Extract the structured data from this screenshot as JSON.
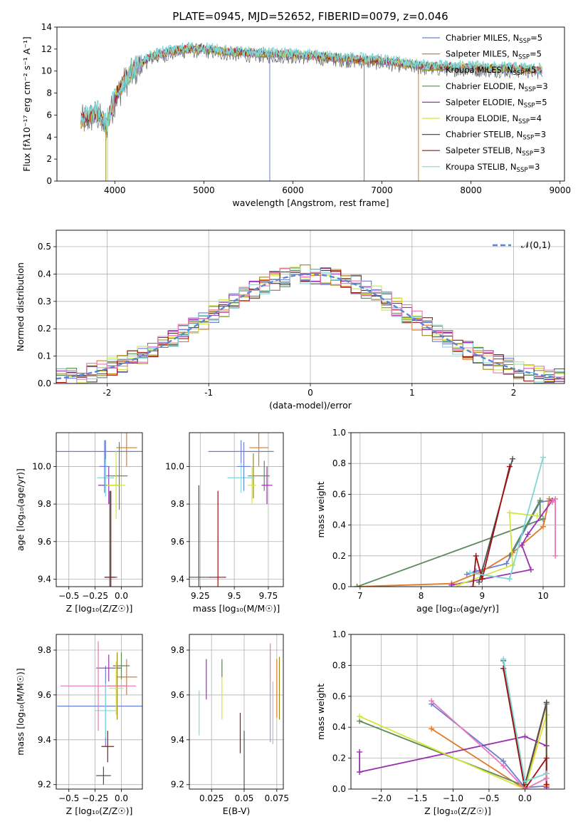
{
  "title": "PLATE=0945, MJD=52652, FIBERID=0079, z=0.046",
  "legend_entries": [
    {
      "name": "Chabrier MILES",
      "nssp": "5",
      "color": "#6b7fd7"
    },
    {
      "name": "Salpeter MILES",
      "nssp": "5",
      "color": "#e07a2a"
    },
    {
      "name": "Kroupa MILES",
      "nssp": "5",
      "color": "#9a8a10"
    },
    {
      "name": "Chabrier ELODIE",
      "nssp": "3",
      "color": "#5a8a5a"
    },
    {
      "name": "Salpeter ELODIE",
      "nssp": "5",
      "color": "#9b30b0"
    },
    {
      "name": "Kroupa ELODIE",
      "nssp": "4",
      "color": "#d4e63a"
    },
    {
      "name": "Chabrier STELIB",
      "nssp": "3",
      "color": "#505050"
    },
    {
      "name": "Salpeter STELIB",
      "nssp": "3",
      "color": "#a01010"
    },
    {
      "name": "Kroupa STELIB",
      "nssp": "3",
      "color": "#80d8d8"
    }
  ],
  "chart_data": [
    {
      "id": "spectrum",
      "type": "line",
      "xlabel": "wavelength [Angstrom, rest frame]",
      "ylabel": "Flux [fλ10⁻¹⁷ erg cm⁻² s⁻¹ A⁻¹]",
      "xlim": [
        3350,
        9050
      ],
      "ylim": [
        0,
        14
      ],
      "xticks": [
        4000,
        5000,
        6000,
        7000,
        8000,
        9000
      ],
      "yticks": [
        0,
        2,
        4,
        6,
        8,
        10,
        12,
        14
      ],
      "continuum_x": [
        3600,
        3700,
        3800,
        3900,
        4000,
        4100,
        4200,
        4400,
        4600,
        4800,
        5000,
        5200,
        5500,
        6000,
        6500,
        7000,
        7500,
        8000,
        8500,
        8800
      ],
      "continuum_y": [
        5.5,
        5.8,
        6.2,
        5.0,
        7.5,
        9.0,
        10.0,
        11.3,
        11.7,
        12.0,
        12.0,
        11.8,
        11.6,
        11.5,
        11.2,
        10.9,
        10.4,
        10.3,
        10.2,
        10.1
      ],
      "grid": false
    },
    {
      "id": "residual_hist",
      "type": "line",
      "xlabel": "(data-model)/error",
      "ylabel": "Normed distribution",
      "xlim": [
        -2.5,
        2.5
      ],
      "ylim": [
        0,
        0.56
      ],
      "xticks": [
        -2,
        -1,
        0,
        1,
        2
      ],
      "yticks": [
        0.0,
        0.1,
        0.2,
        0.3,
        0.4,
        0.5
      ],
      "reference_label": "𝒩(0,1)",
      "grid": true,
      "legend": "top-right"
    },
    {
      "id": "age_vs_Z",
      "type": "scatter",
      "xlabel": "Z [log₁₀(Z/Z☉)]",
      "ylabel": "age  [log₁₀(age/yr)]",
      "xlim": [
        -0.62,
        0.2
      ],
      "ylim": [
        9.36,
        10.18
      ],
      "xticks": [
        -0.5,
        -0.25,
        0.0
      ],
      "xticklabels": [
        "−0.5",
        "−0.25",
        "0.0"
      ],
      "yticks": [
        9.4,
        9.6,
        9.8,
        10.0
      ],
      "points": [
        {
          "x": -0.15,
          "y": 10.08,
          "ex": 0.47,
          "ey": 0.06,
          "c": 0
        },
        {
          "x": 0.05,
          "y": 10.1,
          "ex": 0.1,
          "ey": 0.1,
          "c": 1
        },
        {
          "x": -0.05,
          "y": 9.95,
          "ex": 0.1,
          "ey": 0.05,
          "c": 2
        },
        {
          "x": -0.02,
          "y": 9.95,
          "ex": 0.08,
          "ey": 0.18,
          "c": 3
        },
        {
          "x": -0.12,
          "y": 9.9,
          "ex": 0.1,
          "ey": 0.1,
          "c": 4
        },
        {
          "x": -0.05,
          "y": 9.9,
          "ex": 0.09,
          "ey": 0.18,
          "c": 5
        },
        {
          "x": -0.11,
          "y": 9.41,
          "ex": 0.05,
          "ey": 0.46,
          "c": 6
        },
        {
          "x": -0.1,
          "y": 9.41,
          "ex": 0.06,
          "ey": 0.46,
          "c": 7
        },
        {
          "x": -0.15,
          "y": 9.94,
          "ex": 0.08,
          "ey": 0.1,
          "c": 8
        },
        {
          "x": -0.16,
          "y": 10.0,
          "ex": 0.05,
          "ey": 0.14,
          "c": 0
        }
      ]
    },
    {
      "id": "age_vs_mass",
      "type": "scatter",
      "xlabel": "mass [log₁₀(M/M☉)]",
      "ylabel": "",
      "xlim": [
        9.17,
        9.86
      ],
      "ylim": [
        9.36,
        10.18
      ],
      "xticks": [
        9.25,
        9.5,
        9.75
      ],
      "yticks": [
        9.4,
        9.6,
        9.8,
        10.0
      ],
      "points": [
        {
          "x": 9.55,
          "y": 10.08,
          "ex": 0.24,
          "ey": 0.06,
          "c": 0
        },
        {
          "x": 9.68,
          "y": 10.1,
          "ex": 0.07,
          "ey": 0.1,
          "c": 1
        },
        {
          "x": 9.64,
          "y": 9.95,
          "ex": 0.04,
          "ey": 0.12,
          "c": 2
        },
        {
          "x": 9.72,
          "y": 9.95,
          "ex": 0.04,
          "ey": 0.08,
          "c": 3
        },
        {
          "x": 9.74,
          "y": 9.9,
          "ex": 0.04,
          "ey": 0.1,
          "c": 4
        },
        {
          "x": 9.63,
          "y": 9.9,
          "ex": 0.03,
          "ey": 0.1,
          "c": 5
        },
        {
          "x": 9.24,
          "y": 9.41,
          "ex": 0.09,
          "ey": 0.49,
          "c": 6
        },
        {
          "x": 9.38,
          "y": 9.41,
          "ex": 0.06,
          "ey": 0.46,
          "c": 7
        },
        {
          "x": 9.55,
          "y": 9.94,
          "ex": 0.1,
          "ey": 0.08,
          "c": 8
        },
        {
          "x": 9.57,
          "y": 10.0,
          "ex": 0.05,
          "ey": 0.13,
          "c": 0
        }
      ]
    },
    {
      "id": "mass_weight_vs_age",
      "type": "line",
      "xlabel": "age  [log₁₀(age/yr)]",
      "ylabel": "mass weight",
      "xlim": [
        6.85,
        10.35
      ],
      "ylim": [
        0,
        1
      ],
      "xticks": [
        7,
        8,
        9,
        10
      ],
      "yticks": [
        0.0,
        0.2,
        0.4,
        0.6,
        0.8,
        1.0
      ],
      "grid": true,
      "series": [
        {
          "c": 0,
          "x": [
            8.75,
            8.9,
            9.4,
            9.95,
            10.15
          ],
          "y": [
            0.08,
            0.1,
            0.15,
            0.55,
            0.56
          ]
        },
        {
          "c": 1,
          "x": [
            6.95,
            8.5,
            9.0,
            9.5,
            10.0,
            10.1,
            10.15
          ],
          "y": [
            0.0,
            0.02,
            0.1,
            0.22,
            0.39,
            0.57,
            0.55
          ]
        },
        {
          "c": 3,
          "x": [
            6.95,
            10.0
          ],
          "y": [
            0.0,
            0.44
          ]
        },
        {
          "c": 3,
          "x": [
            9.45,
            9.95,
            9.95
          ],
          "y": [
            0.2,
            0.56,
            0.46
          ]
        },
        {
          "c": 4,
          "x": [
            8.5,
            9.8,
            9.65,
            9.75,
            10.15
          ],
          "y": [
            0.01,
            0.11,
            0.27,
            0.34,
            0.56
          ]
        },
        {
          "c": 5,
          "x": [
            8.6,
            9.5,
            9.45,
            9.9
          ],
          "y": [
            0.01,
            0.14,
            0.48,
            0.46
          ]
        },
        {
          "c": 6,
          "x": [
            8.95,
            9.5
          ],
          "y": [
            0.03,
            0.83
          ]
        },
        {
          "c": 7,
          "x": [
            8.85,
            8.9,
            9.0,
            9.45
          ],
          "y": [
            0.0,
            0.2,
            0.05,
            0.78
          ]
        },
        {
          "c": 8,
          "x": [
            8.8,
            9.45,
            10.0
          ],
          "y": [
            0.09,
            0.05,
            0.84
          ]
        },
        {
          "c": 1,
          "x": [
            10.2,
            10.2,
            10.15
          ],
          "y": [
            0.2,
            0.57,
            0.55
          ],
          "pink": true
        }
      ]
    },
    {
      "id": "mass_vs_Z",
      "type": "scatter",
      "xlabel": "Z [log₁₀(Z/Z☉)]",
      "ylabel": "mass [log₁₀(M/M☉)]",
      "xlim": [
        -0.62,
        0.2
      ],
      "ylim": [
        9.18,
        9.87
      ],
      "xticks": [
        -0.5,
        -0.25,
        0.0
      ],
      "xticklabels": [
        "−0.5",
        "−0.25",
        "0.0"
      ],
      "yticks": [
        9.2,
        9.4,
        9.6,
        9.8
      ],
      "points": [
        {
          "x": -0.15,
          "y": 9.55,
          "ex": 0.46,
          "ey": 0.18,
          "c": 0
        },
        {
          "x": 0.05,
          "y": 9.68,
          "ex": 0.1,
          "ey": 0.08,
          "c": 1
        },
        {
          "x": -0.04,
          "y": 9.64,
          "ex": 0.09,
          "ey": 0.15,
          "c": 2
        },
        {
          "x": 0.0,
          "y": 9.73,
          "ex": 0.08,
          "ey": 0.06,
          "c": 3
        },
        {
          "x": -0.12,
          "y": 9.72,
          "ex": 0.12,
          "ey": 0.06,
          "c": 4
        },
        {
          "x": -0.05,
          "y": 9.63,
          "ex": 0.07,
          "ey": 0.12,
          "c": 5
        },
        {
          "x": -0.17,
          "y": 9.24,
          "ex": 0.07,
          "ey": 0.04,
          "c": 6
        },
        {
          "x": -0.13,
          "y": 9.37,
          "ex": 0.06,
          "ey": 0.07,
          "c": 7
        },
        {
          "x": -0.15,
          "y": 9.53,
          "ex": 0.1,
          "ey": 0.12,
          "c": 8
        },
        {
          "x": -0.22,
          "y": 9.64,
          "ex": 0.36,
          "ey": 0.2,
          "c": 0,
          "pink": true
        }
      ]
    },
    {
      "id": "mass_vs_ebv",
      "type": "scatter",
      "xlabel": "E(B-V)",
      "ylabel": "",
      "xlim": [
        0.008,
        0.08
      ],
      "ylim": [
        9.18,
        9.87
      ],
      "xticks": [
        0.025,
        0.05,
        0.075
      ],
      "yticks": [
        9.2,
        9.4,
        9.6,
        9.8
      ],
      "points": [
        {
          "x": 0.0155,
          "y": 9.52,
          "ey": 0.1,
          "c": 8
        },
        {
          "x": 0.021,
          "y": 9.67,
          "ey": 0.09,
          "c": 4
        },
        {
          "x": 0.033,
          "y": 9.62,
          "ey": 0.13,
          "c": 5
        },
        {
          "x": 0.033,
          "y": 9.72,
          "ey": 0.04,
          "c": 3
        },
        {
          "x": 0.047,
          "y": 9.43,
          "ey": 0.09,
          "c": 7
        },
        {
          "x": 0.05,
          "y": 9.27,
          "ey": 0.17,
          "c": 6
        },
        {
          "x": 0.07,
          "y": 9.61,
          "ey": 0.22,
          "c": 0,
          "pink": true
        },
        {
          "x": 0.072,
          "y": 9.52,
          "ey": 0.14,
          "c": 8
        },
        {
          "x": 0.075,
          "y": 9.63,
          "ey": 0.13,
          "c": 1
        },
        {
          "x": 0.077,
          "y": 9.63,
          "ey": 0.14,
          "c": 2
        }
      ]
    },
    {
      "id": "mass_weight_vs_Z",
      "type": "line",
      "xlabel": "Z [log₁₀(Z/Z☉)]",
      "ylabel": "mass weight",
      "xlim": [
        -2.42,
        0.55
      ],
      "ylim": [
        0,
        1
      ],
      "xticks": [
        -2.0,
        -1.5,
        -1.0,
        -0.5,
        0.0
      ],
      "xticklabels": [
        "−2.0",
        "−1.5",
        "−1.0",
        "−0.5",
        "0.0"
      ],
      "yticks": [
        0.0,
        0.2,
        0.4,
        0.6,
        0.8,
        1.0
      ],
      "grid": true,
      "series": [
        {
          "c": 0,
          "x": [
            -1.3,
            -0.3,
            0.0,
            0.3
          ],
          "y": [
            0.55,
            0.18,
            0.01,
            0.02
          ]
        },
        {
          "c": 1,
          "x": [
            -1.3,
            0.0,
            0.3,
            0.3
          ],
          "y": [
            0.39,
            0.0,
            0.55,
            0.02
          ]
        },
        {
          "c": 3,
          "x": [
            -2.3,
            0.0,
            0.3,
            0.3
          ],
          "y": [
            0.44,
            0.02,
            0.56,
            0.1
          ]
        },
        {
          "c": 4,
          "x": [
            -2.3,
            -2.3,
            0.0,
            0.3,
            0.3
          ],
          "y": [
            0.24,
            0.11,
            0.34,
            0.28,
            0.01
          ]
        },
        {
          "c": 5,
          "x": [
            -2.3,
            0.0,
            0.3,
            0.3
          ],
          "y": [
            0.47,
            0.0,
            0.48,
            0.1
          ]
        },
        {
          "c": 6,
          "x": [
            -0.3,
            0.0,
            0.3,
            0.3
          ],
          "y": [
            0.83,
            0.03,
            0.56,
            0.1
          ]
        },
        {
          "c": 7,
          "x": [
            -0.3,
            0.0,
            0.3,
            0.3
          ],
          "y": [
            0.78,
            0.0,
            0.2,
            0.03
          ]
        },
        {
          "c": 8,
          "x": [
            -0.3,
            0.0,
            0.3
          ],
          "y": [
            0.84,
            0.05,
            0.1
          ]
        },
        {
          "c": 0,
          "x": [
            -1.3,
            -0.3,
            0.0,
            0.3
          ],
          "y": [
            0.57,
            0.15,
            0.0,
            0.07
          ],
          "pink": true
        }
      ]
    }
  ]
}
